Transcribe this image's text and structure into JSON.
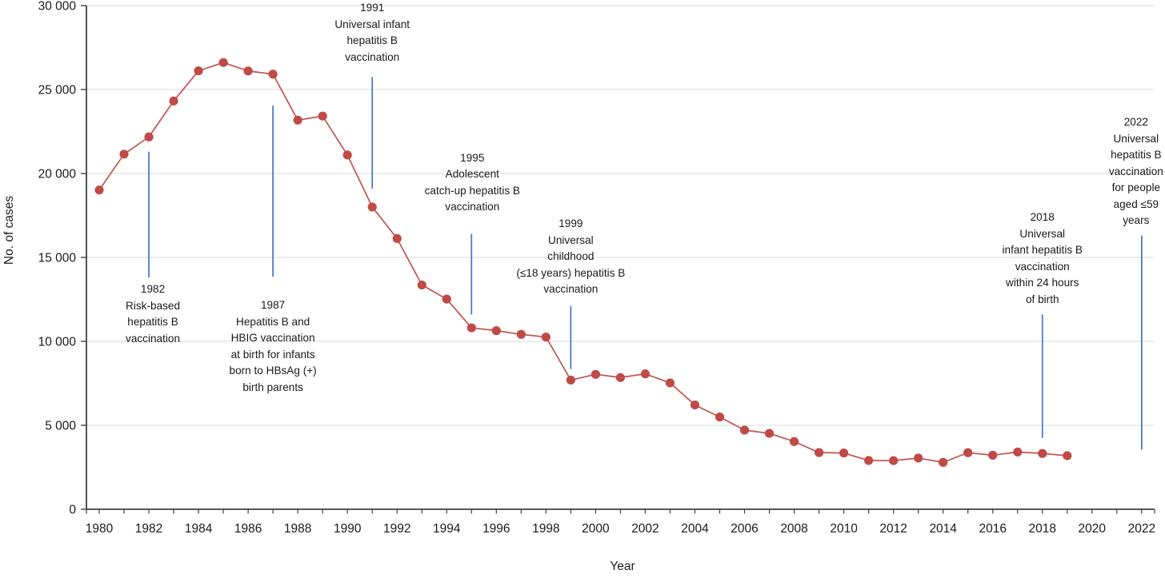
{
  "chart_data": {
    "type": "line",
    "title": "",
    "xlabel": "Year",
    "ylabel": "No. of cases",
    "x_range": [
      1980,
      2022
    ],
    "ylim": [
      0,
      30000
    ],
    "y_tick_step": 5000,
    "y_tick_labels": [
      "0",
      "5 000",
      "10 000",
      "15 000",
      "20 000",
      "25 000",
      "30 000"
    ],
    "x_tick_labels": [
      "1980",
      "1982",
      "1984",
      "1986",
      "1988",
      "1990",
      "1992",
      "1994",
      "1996",
      "1998",
      "2000",
      "2002",
      "2004",
      "2006",
      "2008",
      "2010",
      "2012",
      "2014",
      "2016",
      "2018",
      "2020",
      "2022"
    ],
    "x_minor_ticks_every_year": true,
    "grid": "horizontal",
    "legend": "none",
    "series": [
      {
        "name": "No. of cases",
        "color": "#c0504d",
        "marker": "circle",
        "x": [
          1980,
          1981,
          1982,
          1983,
          1984,
          1985,
          1986,
          1987,
          1988,
          1989,
          1990,
          1991,
          1992,
          1993,
          1994,
          1995,
          1996,
          1997,
          1998,
          1999,
          2000,
          2001,
          2002,
          2003,
          2004,
          2005,
          2006,
          2007,
          2008,
          2009,
          2010,
          2011,
          2012,
          2013,
          2014,
          2015,
          2016,
          2017,
          2018,
          2019
        ],
        "values": [
          19015,
          21152,
          22177,
          24318,
          26115,
          26611,
          26107,
          25916,
          23177,
          23419,
          21102,
          18003,
          16126,
          13361,
          12517,
          10805,
          10637,
          10416,
          10258,
          7694,
          8036,
          7844,
          8064,
          7526,
          6212,
          5494,
          4713,
          4519,
          4033,
          3374,
          3350,
          2903,
          2895,
          3050,
          2791,
          3370,
          3218,
          3409,
          3322,
          3192
        ]
      }
    ],
    "annotations": [
      {
        "year": 1982,
        "side": "below",
        "line_from": 21300,
        "line_to": 13800,
        "offset": 5,
        "dx": 5,
        "label_lines": [
          "1982",
          "Risk-based",
          "hepatitis B",
          "vaccination"
        ]
      },
      {
        "year": 1987,
        "side": "below",
        "line_from": 24050,
        "line_to": 13850,
        "offset": 26,
        "dx": 0,
        "label_lines": [
          "1987",
          "Hepatitis B and",
          "HBIG vaccination",
          "at birth for infants",
          "born to HBsAg (+)",
          "birth parents"
        ]
      },
      {
        "year": 1991,
        "side": "above",
        "line_from": 25750,
        "line_to": 19100,
        "offset": 14,
        "dx": 0,
        "label_lines": [
          "1991",
          "Universal infant",
          "hepatitis B",
          "vaccination"
        ]
      },
      {
        "year": 1995,
        "side": "above",
        "line_from": 16400,
        "line_to": 11600,
        "offset": 23,
        "dx": 1,
        "label_lines": [
          "1995",
          "Adolescent",
          "catch-up hepatitis B",
          "vaccination"
        ]
      },
      {
        "year": 1999,
        "side": "above",
        "line_from": 12100,
        "line_to": 8350,
        "offset": 10,
        "dx": 0,
        "label_lines": [
          "1999",
          "Universal",
          "childhood",
          "(≤18 years) hepatitis B",
          "vaccination"
        ]
      },
      {
        "year": 2018,
        "side": "above",
        "line_from": 11600,
        "line_to": 4250,
        "offset": 8,
        "dx": 0,
        "label_lines": [
          "2018",
          "Universal",
          "infant hepatitis B",
          "vaccination",
          "within 24 hours",
          "of birth"
        ]
      },
      {
        "year": 2022,
        "side": "above",
        "line_from": 16300,
        "line_to": 3550,
        "offset": 8,
        "dx": -7,
        "label_lines": [
          "2022",
          "Universal",
          "hepatitis B",
          "vaccination",
          "for people",
          "aged ≤59",
          "years"
        ]
      }
    ],
    "colors": {
      "series_line": "#c5524e",
      "series_marker": "#bf4b48",
      "annotation_line": "#4472c4",
      "gridline": "#d9d9d9",
      "axis": "#3f3f3f",
      "text": "#1a1a1a"
    }
  }
}
